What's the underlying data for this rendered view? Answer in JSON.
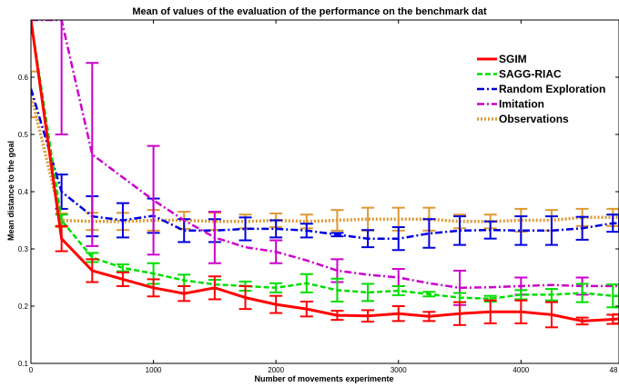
{
  "chart_data": {
    "type": "line",
    "title": "Mean of values of the evaluation of the performance on the benchmark dat",
    "xlabel": "Number of movements experimente",
    "ylabel": "Mean distance to the goal",
    "xlim": [
      0,
      4800
    ],
    "ylim": [
      0.1,
      0.7
    ],
    "x_ticks": [
      "0",
      "1000",
      "2000",
      "3000",
      "4000",
      "48"
    ],
    "y_ticks": [
      "0.1",
      "0.2",
      "0.3",
      "0.4",
      "0.5",
      "0.6"
    ],
    "grid": false,
    "legend_position": "top-right",
    "series": [
      {
        "name": "SGIM",
        "color": "#ff0000",
        "style": "solid",
        "x": [
          0,
          250,
          500,
          750,
          1000,
          1250,
          1500,
          1750,
          2000,
          2250,
          2500,
          2750,
          3000,
          3250,
          3500,
          3750,
          4000,
          4250,
          4500,
          4750,
          4800
        ],
        "y": [
          0.7,
          0.318,
          0.262,
          0.247,
          0.232,
          0.222,
          0.232,
          0.215,
          0.203,
          0.195,
          0.184,
          0.183,
          0.187,
          0.182,
          0.187,
          0.19,
          0.19,
          0.185,
          0.174,
          0.177,
          0.178
        ],
        "err": [
          0,
          0.022,
          0.02,
          0.012,
          0.015,
          0.013,
          0.02,
          0.02,
          0.015,
          0.013,
          0.008,
          0.01,
          0.013,
          0.008,
          0.02,
          0.02,
          0.02,
          0.022,
          0.006,
          0.008,
          0.008
        ]
      },
      {
        "name": "SAGG-RIAC",
        "color": "#00dd00",
        "style": "dashed",
        "x": [
          0,
          250,
          500,
          750,
          1000,
          1250,
          1500,
          1750,
          2000,
          2250,
          2500,
          2750,
          3000,
          3250,
          3500,
          3750,
          4000,
          4250,
          4500,
          4750,
          4800
        ],
        "y": [
          0.7,
          0.35,
          0.285,
          0.267,
          0.257,
          0.245,
          0.238,
          0.235,
          0.232,
          0.24,
          0.228,
          0.224,
          0.227,
          0.221,
          0.215,
          0.213,
          0.22,
          0.22,
          0.223,
          0.218,
          0.218
        ],
        "err": [
          0,
          0.01,
          0.008,
          0.006,
          0.018,
          0.01,
          0.008,
          0.008,
          0.008,
          0.016,
          0.02,
          0.015,
          0.008,
          0.004,
          0.008,
          0.005,
          0.008,
          0.01,
          0.016,
          0.02,
          0.02
        ]
      },
      {
        "name": "Random Exploration",
        "color": "#0000dd",
        "style": "dashdot",
        "x": [
          0,
          250,
          500,
          750,
          1000,
          1250,
          1500,
          1750,
          2000,
          2250,
          2500,
          2750,
          3000,
          3250,
          3500,
          3750,
          4000,
          4250,
          4500,
          4750,
          4800
        ],
        "y": [
          0.58,
          0.4,
          0.357,
          0.35,
          0.358,
          0.332,
          0.332,
          0.335,
          0.335,
          0.332,
          0.325,
          0.318,
          0.318,
          0.327,
          0.332,
          0.333,
          0.332,
          0.332,
          0.336,
          0.345,
          0.345
        ],
        "err": [
          0,
          0.03,
          0.035,
          0.03,
          0.03,
          0.02,
          0.02,
          0.02,
          0.015,
          0.012,
          0.003,
          0.015,
          0.02,
          0.025,
          0.025,
          0.015,
          0.025,
          0.025,
          0.02,
          0.015,
          0.015
        ]
      },
      {
        "name": "Imitation",
        "color": "#cc00cc",
        "style": "dashdot",
        "x": [
          0,
          250,
          500,
          750,
          1000,
          1250,
          1500,
          1750,
          2000,
          2250,
          2500,
          2750,
          3000,
          3250,
          3500,
          3750,
          4000,
          4250,
          4500,
          4750,
          4800
        ],
        "y": [
          0.7,
          0.7,
          0.465,
          0.425,
          0.385,
          0.35,
          0.32,
          0.303,
          0.295,
          0.28,
          0.262,
          0.255,
          0.25,
          0.24,
          0.232,
          0.233,
          0.235,
          0.237,
          0.235,
          0.235,
          0.235
        ],
        "err": [
          0,
          0.2,
          0.16,
          0,
          0.095,
          0,
          0.045,
          0,
          0.02,
          0,
          0.02,
          0,
          0.015,
          0,
          0.03,
          0,
          0.015,
          0,
          0.015,
          0,
          0
        ]
      },
      {
        "name": "Observations",
        "color": "#dd9933",
        "style": "dotted",
        "x": [
          0,
          250,
          500,
          750,
          1000,
          1250,
          1500,
          1750,
          2000,
          2250,
          2500,
          2750,
          3000,
          3250,
          3500,
          3750,
          4000,
          4250,
          4500,
          4750,
          4800
        ],
        "y": [
          0.57,
          0.35,
          0.348,
          0.348,
          0.35,
          0.35,
          0.348,
          0.348,
          0.35,
          0.348,
          0.35,
          0.352,
          0.352,
          0.352,
          0.348,
          0.348,
          0.35,
          0.35,
          0.355,
          0.355,
          0.355
        ],
        "err": [
          0.04,
          0.012,
          0.015,
          0.015,
          0.018,
          0.015,
          0.015,
          0.012,
          0.012,
          0.012,
          0.018,
          0.02,
          0.02,
          0.02,
          0.012,
          0.012,
          0.02,
          0.018,
          0.015,
          0.015,
          0.015
        ]
      }
    ]
  }
}
